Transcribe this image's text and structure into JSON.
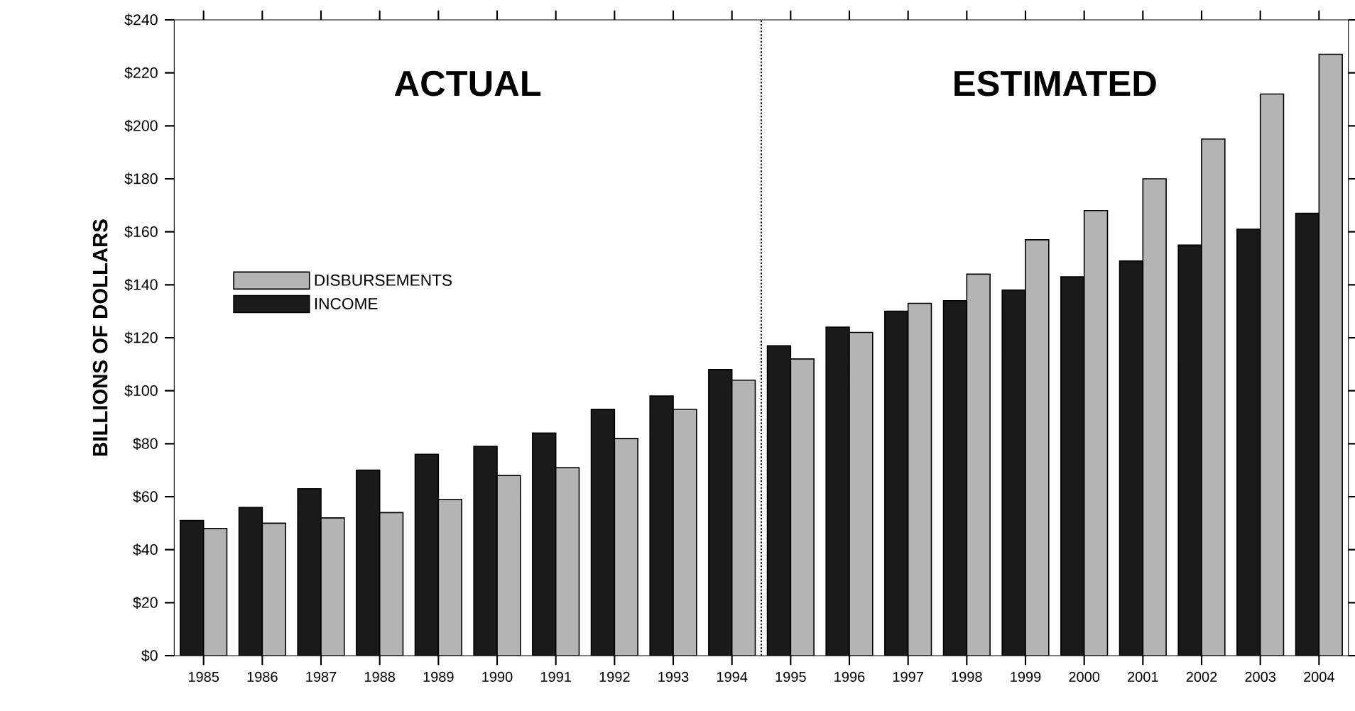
{
  "chart_data": {
    "type": "bar",
    "ylabel": "BILLIONS OF DOLLARS",
    "categories": [
      "1985",
      "1986",
      "1987",
      "1988",
      "1989",
      "1990",
      "1991",
      "1992",
      "1993",
      "1994",
      "1995",
      "1996",
      "1997",
      "1998",
      "1999",
      "2000",
      "2001",
      "2002",
      "2003",
      "2004"
    ],
    "series": [
      {
        "name": "INCOME",
        "color": "#1a1a1a",
        "values": [
          51,
          56,
          63,
          70,
          76,
          79,
          84,
          93,
          98,
          108,
          117,
          124,
          130,
          134,
          138,
          143,
          149,
          155,
          161,
          167
        ]
      },
      {
        "name": "DISBURSEMENTS",
        "color": "#b4b4b4",
        "values": [
          48,
          50,
          52,
          54,
          59,
          68,
          71,
          82,
          93,
          104,
          112,
          122,
          133,
          144,
          157,
          168,
          180,
          195,
          212,
          227
        ]
      }
    ],
    "ylim": [
      0,
      240
    ],
    "yticks": [
      {
        "value": 0,
        "label": "$0"
      },
      {
        "value": 20,
        "label": "$20"
      },
      {
        "value": 40,
        "label": "$40"
      },
      {
        "value": 60,
        "label": "$60"
      },
      {
        "value": 80,
        "label": "$80"
      },
      {
        "value": 100,
        "label": "$100"
      },
      {
        "value": 120,
        "label": "$120"
      },
      {
        "value": 140,
        "label": "$140"
      },
      {
        "value": 160,
        "label": "$160"
      },
      {
        "value": 180,
        "label": "$180"
      },
      {
        "value": 200,
        "label": "$200"
      },
      {
        "value": 220,
        "label": "$220"
      },
      {
        "value": 240,
        "label": "$240"
      }
    ],
    "annotations": [
      "ACTUAL",
      "ESTIMATED"
    ],
    "legend": "left",
    "grid": false
  }
}
